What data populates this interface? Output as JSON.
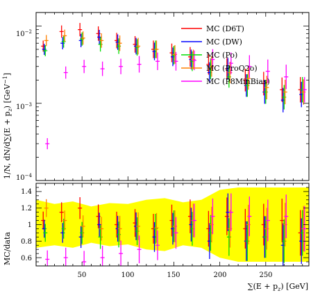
{
  "chart_data": [
    {
      "type": "scatter",
      "panel": "main",
      "ylabel": "1/N, dN/d∑(E + p_z) [GeV⁻¹]",
      "yscale": "log",
      "ylim": [
        0.0001,
        0.015
      ],
      "xlim": [
        0,
        297
      ],
      "ytick_labels": [
        "10⁻²",
        "10⁻³",
        "10⁻⁴"
      ],
      "ytick_values": [
        0.01,
        0.001,
        0.0001
      ],
      "grid": false,
      "legend_position": "top-right",
      "series": [
        {
          "name": "MC (D6T)",
          "color": "#ff0000",
          "x": [
            10,
            30,
            50,
            70,
            90,
            110,
            130,
            150,
            170,
            190,
            210,
            230,
            250,
            270,
            290
          ],
          "y": [
            0.0055,
            0.0085,
            0.009,
            0.008,
            0.0065,
            0.0058,
            0.005,
            0.0045,
            0.004,
            0.0032,
            0.0028,
            0.002,
            0.0018,
            0.0015,
            0.0015
          ]
        },
        {
          "name": "MC (DW)",
          "color": "#0000ff",
          "x": [
            10,
            30,
            50,
            70,
            90,
            110,
            130,
            150,
            170,
            190,
            210,
            230,
            250,
            270,
            290
          ],
          "y": [
            0.005,
            0.006,
            0.0065,
            0.0072,
            0.0062,
            0.0055,
            0.0047,
            0.004,
            0.0037,
            0.0025,
            0.0028,
            0.0017,
            0.0014,
            0.0011,
            0.0013
          ]
        },
        {
          "name": "MC (P0)",
          "color": "#00dd00",
          "x": [
            10,
            30,
            50,
            70,
            90,
            110,
            130,
            150,
            170,
            190,
            210,
            230,
            250,
            270,
            290
          ],
          "y": [
            0.0048,
            0.0063,
            0.0068,
            0.0058,
            0.0055,
            0.0053,
            0.005,
            0.0042,
            0.0035,
            0.0028,
            0.0022,
            0.0017,
            0.0014,
            0.0012,
            0.0015
          ]
        },
        {
          "name": "MC (ProQ20)",
          "color": "#ff8000",
          "x": [
            10,
            30,
            50,
            70,
            90,
            110,
            130,
            150,
            170,
            190,
            210,
            230,
            250,
            270,
            290
          ],
          "y": [
            0.0065,
            0.0075,
            0.007,
            0.0065,
            0.006,
            0.0055,
            0.005,
            0.0043,
            0.0037,
            0.003,
            0.0025,
            0.0021,
            0.0016,
            0.0014,
            0.0014
          ]
        },
        {
          "name": "MC (P8MinBias)",
          "color": "#ff00ff",
          "x": [
            10,
            30,
            50,
            70,
            90,
            110,
            130,
            150,
            170,
            190,
            210,
            230,
            250,
            270,
            290
          ],
          "y": [
            0.0003,
            0.0025,
            0.003,
            0.0028,
            0.003,
            0.0032,
            0.0035,
            0.0035,
            0.0036,
            0.0037,
            0.0033,
            0.003,
            0.0026,
            0.0022,
            0.0015
          ]
        }
      ]
    },
    {
      "type": "scatter",
      "panel": "ratio",
      "xlabel": "∑(E + p_z) [GeV]",
      "ylabel": "MC/data",
      "xlim": [
        0,
        297
      ],
      "ylim": [
        0.5,
        1.5
      ],
      "xticks": [
        50,
        100,
        150,
        200,
        250
      ],
      "yticks": [
        0.6,
        0.8,
        1,
        1.2,
        1.4
      ],
      "ytick_labels": [
        "0.6",
        "0.8",
        "1",
        "1.2",
        "1.4"
      ],
      "band": {
        "color": "#ffff00",
        "x": [
          0,
          20,
          40,
          60,
          80,
          100,
          120,
          140,
          160,
          180,
          200,
          220,
          240,
          260,
          280,
          297
        ],
        "low": [
          0.72,
          0.75,
          0.72,
          0.78,
          0.74,
          0.76,
          0.7,
          0.68,
          0.75,
          0.72,
          0.6,
          0.55,
          0.55,
          0.55,
          0.55,
          0.55
        ],
        "high": [
          1.3,
          1.25,
          1.28,
          1.22,
          1.26,
          1.25,
          1.3,
          1.32,
          1.27,
          1.3,
          1.42,
          1.45,
          1.45,
          1.45,
          1.45,
          1.45
        ]
      },
      "series": [
        {
          "name": "MC (D6T)",
          "color": "#ff0000",
          "x": [
            10,
            30,
            50,
            70,
            90,
            110,
            130,
            150,
            170,
            190,
            210,
            230,
            250,
            270,
            290
          ],
          "y": [
            1.05,
            1.15,
            1.2,
            1.1,
            1.0,
            1.02,
            0.95,
            1.05,
            1.1,
            0.95,
            1.1,
            0.95,
            1.0,
            1.05,
            0.9
          ]
        },
        {
          "name": "MC (DW)",
          "color": "#0000ff",
          "x": [
            10,
            30,
            50,
            70,
            90,
            110,
            130,
            150,
            170,
            190,
            210,
            230,
            250,
            270,
            290
          ],
          "y": [
            0.95,
            0.9,
            0.85,
            1.0,
            0.95,
            0.98,
            0.85,
            0.95,
            1.0,
            0.8,
            1.15,
            0.8,
            0.85,
            0.75,
            0.8
          ]
        },
        {
          "name": "MC (P0)",
          "color": "#00dd00",
          "x": [
            10,
            30,
            50,
            70,
            90,
            110,
            130,
            150,
            170,
            190,
            210,
            230,
            250,
            270,
            290
          ],
          "y": [
            0.9,
            0.95,
            0.9,
            0.85,
            0.88,
            0.92,
            0.95,
            0.98,
            0.95,
            0.9,
            0.85,
            0.8,
            0.85,
            0.8,
            0.9
          ]
        },
        {
          "name": "MC (ProQ20)",
          "color": "#ff8000",
          "x": [
            10,
            30,
            50,
            70,
            90,
            110,
            130,
            150,
            170,
            190,
            210,
            230,
            250,
            270,
            290
          ],
          "y": [
            1.2,
            1.05,
            0.98,
            0.95,
            0.95,
            0.98,
            0.96,
            0.98,
            1.05,
            1.0,
            0.95,
            1.0,
            0.95,
            1.0,
            0.95
          ]
        },
        {
          "name": "MC (P8MinBias)",
          "color": "#ff00ff",
          "x": [
            10,
            30,
            50,
            70,
            90,
            110,
            130,
            150,
            170,
            190,
            210,
            230,
            250,
            270,
            290
          ],
          "y": [
            0.58,
            0.6,
            0.55,
            0.6,
            0.65,
            0.7,
            0.75,
            0.9,
            1.05,
            1.1,
            1.15,
            1.1,
            1.05,
            1.1,
            0.95
          ]
        }
      ]
    }
  ],
  "legend": {
    "entries": [
      {
        "label": "MC (D6T)",
        "color": "#ff0000"
      },
      {
        "label": "MC (DW)",
        "color": "#0000ff"
      },
      {
        "label": "MC (Po)",
        "color": "#00dd00"
      },
      {
        "label": "MC (ProQ2o)",
        "color": "#ff8000"
      },
      {
        "label": "MC (P8MinBias)",
        "color": "#ff00ff"
      }
    ]
  },
  "labels": {
    "main_ylabel": "1/N, dN/d∑(E + p",
    "main_ylabel_sub": "z",
    "main_ylabel_tail": ") [GeV",
    "main_ylabel_sup": "−1",
    "main_ylabel_end": "]",
    "ratio_ylabel": "MC/data",
    "xlabel": "∑(E + p",
    "xlabel_sub": "z",
    "xlabel_tail": ") [GeV]",
    "ytick_main": [
      "10",
      "10",
      "10"
    ],
    "ytick_main_exp": [
      "−2",
      "−3",
      "−4"
    ],
    "xtick_labels": [
      "50",
      "100",
      "150",
      "200",
      "250"
    ],
    "ytick_ratio": [
      "1.4",
      "1.2",
      "1",
      "0.8",
      "0.6"
    ]
  }
}
